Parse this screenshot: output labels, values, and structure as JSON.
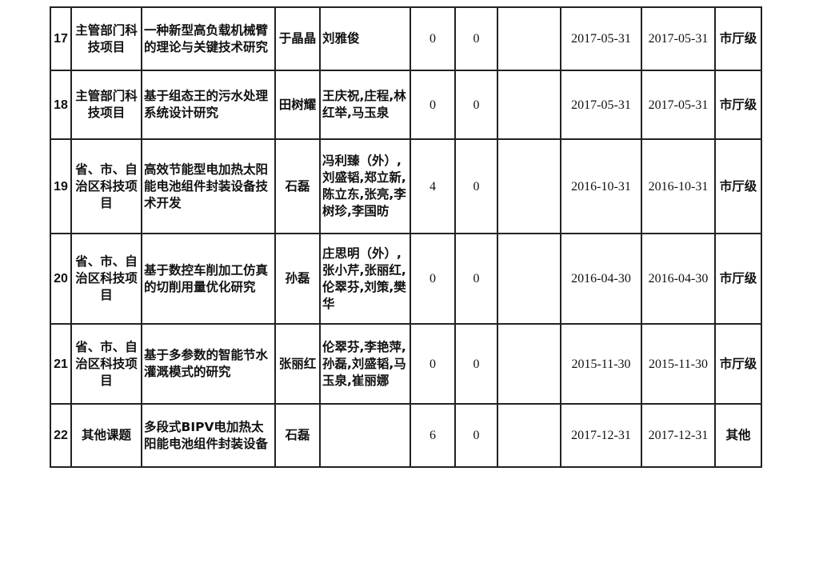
{
  "rows": [
    {
      "no": "17",
      "category": "主管部门科技项目",
      "title": "一种新型高负载机械臂的理论与关键技术研究",
      "leader": "于晶晶",
      "members": "刘雅俊",
      "col6": "0",
      "col7": "0",
      "col8": "",
      "start": "2017-05-31",
      "end": "2017-05-31",
      "level": "市厅级"
    },
    {
      "no": "18",
      "category": "主管部门科技项目",
      "title": "基于组态王的污水处理系统设计研究",
      "leader": "田树耀",
      "members": "王庆祝,庄程,林红举,马玉泉",
      "col6": "0",
      "col7": "0",
      "col8": "",
      "start": "2017-05-31",
      "end": "2017-05-31",
      "level": "市厅级"
    },
    {
      "no": "19",
      "category": "省、市、自治区科技项目",
      "title": "高效节能型电加热太阳能电池组件封装设备技术开发",
      "leader": "石磊",
      "members": "冯利臻（外）,刘盛韬,郑立新,陈立东,张亮,李树珍,李国昉",
      "col6": "4",
      "col7": "0",
      "col8": "",
      "start": "2016-10-31",
      "end": "2016-10-31",
      "level": "市厅级"
    },
    {
      "no": "20",
      "category": "省、市、自治区科技项目",
      "title": "基于数控车削加工仿真的切削用量优化研究",
      "leader": "孙磊",
      "members": "庄思明（外）,张小芹,张丽红,伦翠芬,刘策,樊华",
      "col6": "0",
      "col7": "0",
      "col8": "",
      "start": "2016-04-30",
      "end": "2016-04-30",
      "level": "市厅级"
    },
    {
      "no": "21",
      "category": "省、市、自治区科技项目",
      "title": "基于多参数的智能节水灌溉模式的研究",
      "leader": "张丽红",
      "members": "伦翠芬,李艳萍,孙磊,刘盛韬,马玉泉,崔丽娜",
      "col6": "0",
      "col7": "0",
      "col8": "",
      "start": "2015-11-30",
      "end": "2015-11-30",
      "level": "市厅级"
    },
    {
      "no": "22",
      "category": "其他课题",
      "title": "多段式BIPV电加热太阳能电池组件封装设备",
      "leader": "石磊",
      "members": "",
      "col6": "6",
      "col7": "0",
      "col8": "",
      "start": "2017-12-31",
      "end": "2017-12-31",
      "level": "其他"
    }
  ]
}
